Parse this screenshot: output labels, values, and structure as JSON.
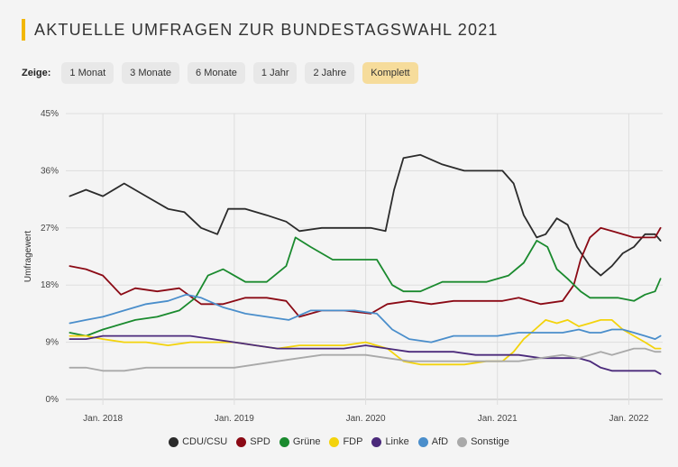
{
  "page": {
    "title": "AKTUELLE UMFRAGEN ZUR BUNDESTAGSWAHL 2021"
  },
  "filters": {
    "label": "Zeige:",
    "buttons": [
      "1 Monat",
      "3 Monate",
      "6 Monate",
      "1 Jahr",
      "2 Jahre",
      "Komplett"
    ],
    "active": "Komplett",
    "active_color": "#f6dc9b"
  },
  "chart_data": {
    "type": "line",
    "ylabel": "Umfragewert",
    "ylim": [
      0,
      45
    ],
    "yticks": [
      "0%",
      "9%",
      "18%",
      "27%",
      "36%",
      "45%"
    ],
    "xlim": [
      "2017-09-20",
      "2022-04-05"
    ],
    "xticks": [
      "Jan. 2018",
      "Jan. 2019",
      "Jan. 2020",
      "Jan. 2021",
      "Jan. 2022"
    ],
    "xtick_dates": [
      "2018-01-01",
      "2019-01-01",
      "2020-01-01",
      "2021-01-01",
      "2022-01-01"
    ],
    "grid": true,
    "legend_position": "bottom",
    "series": [
      {
        "name": "CDU/CSU",
        "color": "#2b2b2b",
        "points": [
          [
            "2017-10-01",
            32
          ],
          [
            "2017-11-15",
            33
          ],
          [
            "2018-01-01",
            32
          ],
          [
            "2018-03-01",
            34
          ],
          [
            "2018-05-01",
            32
          ],
          [
            "2018-07-01",
            30
          ],
          [
            "2018-08-15",
            29.5
          ],
          [
            "2018-10-01",
            27
          ],
          [
            "2018-11-15",
            26
          ],
          [
            "2018-12-15",
            30
          ],
          [
            "2019-02-01",
            30
          ],
          [
            "2019-04-01",
            29
          ],
          [
            "2019-05-25",
            28
          ],
          [
            "2019-07-01",
            26.5
          ],
          [
            "2019-09-01",
            27
          ],
          [
            "2019-11-01",
            27
          ],
          [
            "2020-01-15",
            27
          ],
          [
            "2020-02-25",
            26.5
          ],
          [
            "2020-03-20",
            33
          ],
          [
            "2020-04-15",
            38
          ],
          [
            "2020-06-01",
            38.5
          ],
          [
            "2020-08-01",
            37
          ],
          [
            "2020-10-01",
            36
          ],
          [
            "2020-12-01",
            36
          ],
          [
            "2021-01-15",
            36
          ],
          [
            "2021-02-15",
            34
          ],
          [
            "2021-03-15",
            29
          ],
          [
            "2021-04-20",
            25.5
          ],
          [
            "2021-05-15",
            26
          ],
          [
            "2021-06-15",
            28.5
          ],
          [
            "2021-07-15",
            27.5
          ],
          [
            "2021-08-10",
            24
          ],
          [
            "2021-09-15",
            21
          ],
          [
            "2021-10-15",
            19.5
          ],
          [
            "2021-11-15",
            21
          ],
          [
            "2021-12-15",
            23
          ],
          [
            "2022-01-15",
            24
          ],
          [
            "2022-02-15",
            26
          ],
          [
            "2022-03-15",
            26
          ],
          [
            "2022-03-30",
            25
          ]
        ]
      },
      {
        "name": "SPD",
        "color": "#8b0a15",
        "points": [
          [
            "2017-10-01",
            21
          ],
          [
            "2017-11-15",
            20.5
          ],
          [
            "2018-01-01",
            19.5
          ],
          [
            "2018-02-20",
            16.5
          ],
          [
            "2018-04-01",
            17.5
          ],
          [
            "2018-06-01",
            17
          ],
          [
            "2018-08-01",
            17.5
          ],
          [
            "2018-10-01",
            15
          ],
          [
            "2018-12-01",
            15
          ],
          [
            "2019-02-01",
            16
          ],
          [
            "2019-04-01",
            16
          ],
          [
            "2019-05-25",
            15.5
          ],
          [
            "2019-07-01",
            13
          ],
          [
            "2019-09-01",
            14
          ],
          [
            "2019-11-01",
            14
          ],
          [
            "2020-01-15",
            13.5
          ],
          [
            "2020-03-01",
            15
          ],
          [
            "2020-05-01",
            15.5
          ],
          [
            "2020-07-01",
            15
          ],
          [
            "2020-09-01",
            15.5
          ],
          [
            "2020-11-01",
            15.5
          ],
          [
            "2021-01-15",
            15.5
          ],
          [
            "2021-03-01",
            16
          ],
          [
            "2021-05-01",
            15
          ],
          [
            "2021-07-01",
            15.5
          ],
          [
            "2021-08-01",
            18
          ],
          [
            "2021-08-20",
            22
          ],
          [
            "2021-09-15",
            25.5
          ],
          [
            "2021-10-15",
            27
          ],
          [
            "2021-11-15",
            26.5
          ],
          [
            "2021-12-15",
            26
          ],
          [
            "2022-01-15",
            25.5
          ],
          [
            "2022-02-15",
            25.5
          ],
          [
            "2022-03-15",
            25.5
          ],
          [
            "2022-03-30",
            27
          ]
        ]
      },
      {
        "name": "Grüne",
        "color": "#1a8a2e",
        "points": [
          [
            "2017-10-01",
            10.5
          ],
          [
            "2017-11-15",
            10
          ],
          [
            "2018-01-01",
            11
          ],
          [
            "2018-04-01",
            12.5
          ],
          [
            "2018-06-01",
            13
          ],
          [
            "2018-08-01",
            14
          ],
          [
            "2018-09-15",
            16
          ],
          [
            "2018-10-20",
            19.5
          ],
          [
            "2018-12-01",
            20.5
          ],
          [
            "2019-02-01",
            18.5
          ],
          [
            "2019-04-01",
            18.5
          ],
          [
            "2019-05-25",
            21
          ],
          [
            "2019-06-20",
            25.5
          ],
          [
            "2019-08-01",
            24
          ],
          [
            "2019-10-01",
            22
          ],
          [
            "2019-12-01",
            22
          ],
          [
            "2020-02-01",
            22
          ],
          [
            "2020-03-15",
            18
          ],
          [
            "2020-04-15",
            17
          ],
          [
            "2020-06-01",
            17
          ],
          [
            "2020-08-01",
            18.5
          ],
          [
            "2020-10-01",
            18.5
          ],
          [
            "2020-12-01",
            18.5
          ],
          [
            "2021-02-01",
            19.5
          ],
          [
            "2021-03-15",
            21.5
          ],
          [
            "2021-04-20",
            25
          ],
          [
            "2021-05-20",
            24
          ],
          [
            "2021-06-15",
            20.5
          ],
          [
            "2021-07-15",
            19
          ],
          [
            "2021-08-20",
            17
          ],
          [
            "2021-09-15",
            16
          ],
          [
            "2021-10-15",
            16
          ],
          [
            "2021-12-01",
            16
          ],
          [
            "2022-01-15",
            15.5
          ],
          [
            "2022-02-15",
            16.5
          ],
          [
            "2022-03-15",
            17
          ],
          [
            "2022-03-30",
            19
          ]
        ]
      },
      {
        "name": "FDP",
        "color": "#f3d30c",
        "points": [
          [
            "2017-10-01",
            10
          ],
          [
            "2017-11-15",
            10
          ],
          [
            "2018-01-01",
            9.5
          ],
          [
            "2018-03-01",
            9
          ],
          [
            "2018-05-01",
            9
          ],
          [
            "2018-07-01",
            8.5
          ],
          [
            "2018-09-01",
            9
          ],
          [
            "2018-11-01",
            9
          ],
          [
            "2019-01-01",
            9
          ],
          [
            "2019-03-01",
            8.5
          ],
          [
            "2019-05-01",
            8
          ],
          [
            "2019-07-01",
            8.5
          ],
          [
            "2019-09-01",
            8.5
          ],
          [
            "2019-11-01",
            8.5
          ],
          [
            "2020-01-01",
            9
          ],
          [
            "2020-03-01",
            8
          ],
          [
            "2020-04-15",
            6
          ],
          [
            "2020-06-01",
            5.5
          ],
          [
            "2020-08-01",
            5.5
          ],
          [
            "2020-10-01",
            5.5
          ],
          [
            "2020-12-01",
            6
          ],
          [
            "2021-01-15",
            6
          ],
          [
            "2021-02-15",
            7.5
          ],
          [
            "2021-03-15",
            9.5
          ],
          [
            "2021-04-15",
            11
          ],
          [
            "2021-05-15",
            12.5
          ],
          [
            "2021-06-15",
            12
          ],
          [
            "2021-07-15",
            12.5
          ],
          [
            "2021-08-15",
            11.5
          ],
          [
            "2021-09-15",
            12
          ],
          [
            "2021-10-15",
            12.5
          ],
          [
            "2021-11-15",
            12.5
          ],
          [
            "2021-12-15",
            11
          ],
          [
            "2022-01-15",
            10
          ],
          [
            "2022-02-15",
            9
          ],
          [
            "2022-03-15",
            8
          ],
          [
            "2022-03-30",
            8
          ]
        ]
      },
      {
        "name": "Linke",
        "color": "#4b2a7b",
        "points": [
          [
            "2017-10-01",
            9.5
          ],
          [
            "2017-11-15",
            9.5
          ],
          [
            "2018-01-01",
            10
          ],
          [
            "2018-03-01",
            10
          ],
          [
            "2018-05-01",
            10
          ],
          [
            "2018-07-01",
            10
          ],
          [
            "2018-09-01",
            10
          ],
          [
            "2018-11-01",
            9.5
          ],
          [
            "2019-01-01",
            9
          ],
          [
            "2019-03-01",
            8.5
          ],
          [
            "2019-05-01",
            8
          ],
          [
            "2019-07-01",
            8
          ],
          [
            "2019-09-01",
            8
          ],
          [
            "2019-11-01",
            8
          ],
          [
            "2020-01-01",
            8.5
          ],
          [
            "2020-03-01",
            8
          ],
          [
            "2020-05-01",
            7.5
          ],
          [
            "2020-07-01",
            7.5
          ],
          [
            "2020-09-01",
            7.5
          ],
          [
            "2020-11-01",
            7
          ],
          [
            "2021-01-01",
            7
          ],
          [
            "2021-03-01",
            7
          ],
          [
            "2021-05-01",
            6.5
          ],
          [
            "2021-07-01",
            6.5
          ],
          [
            "2021-08-15",
            6.5
          ],
          [
            "2021-09-15",
            6
          ],
          [
            "2021-10-15",
            5
          ],
          [
            "2021-11-15",
            4.5
          ],
          [
            "2021-12-15",
            4.5
          ],
          [
            "2022-01-15",
            4.5
          ],
          [
            "2022-02-15",
            4.5
          ],
          [
            "2022-03-15",
            4.5
          ],
          [
            "2022-03-30",
            4
          ]
        ]
      },
      {
        "name": "AfD",
        "color": "#4a8ecb",
        "points": [
          [
            "2017-10-01",
            12
          ],
          [
            "2017-11-15",
            12.5
          ],
          [
            "2018-01-01",
            13
          ],
          [
            "2018-03-01",
            14
          ],
          [
            "2018-05-01",
            15
          ],
          [
            "2018-07-01",
            15.5
          ],
          [
            "2018-08-20",
            16.5
          ],
          [
            "2018-10-01",
            16
          ],
          [
            "2018-12-01",
            14.5
          ],
          [
            "2019-02-01",
            13.5
          ],
          [
            "2019-04-01",
            13
          ],
          [
            "2019-06-01",
            12.5
          ],
          [
            "2019-08-01",
            14
          ],
          [
            "2019-10-01",
            14
          ],
          [
            "2019-12-01",
            14
          ],
          [
            "2020-02-01",
            13.5
          ],
          [
            "2020-03-15",
            11
          ],
          [
            "2020-05-01",
            9.5
          ],
          [
            "2020-07-01",
            9
          ],
          [
            "2020-09-01",
            10
          ],
          [
            "2020-11-01",
            10
          ],
          [
            "2021-01-01",
            10
          ],
          [
            "2021-03-01",
            10.5
          ],
          [
            "2021-05-01",
            10.5
          ],
          [
            "2021-07-01",
            10.5
          ],
          [
            "2021-08-15",
            11
          ],
          [
            "2021-09-15",
            10.5
          ],
          [
            "2021-10-15",
            10.5
          ],
          [
            "2021-11-15",
            11
          ],
          [
            "2021-12-15",
            11
          ],
          [
            "2022-01-15",
            10.5
          ],
          [
            "2022-02-15",
            10
          ],
          [
            "2022-03-15",
            9.5
          ],
          [
            "2022-03-30",
            10
          ]
        ]
      },
      {
        "name": "Sonstige",
        "color": "#a9a9a9",
        "points": [
          [
            "2017-10-01",
            5
          ],
          [
            "2017-11-15",
            5
          ],
          [
            "2018-01-01",
            4.5
          ],
          [
            "2018-03-01",
            4.5
          ],
          [
            "2018-05-01",
            5
          ],
          [
            "2018-07-01",
            5
          ],
          [
            "2018-09-01",
            5
          ],
          [
            "2018-11-01",
            5
          ],
          [
            "2019-01-01",
            5
          ],
          [
            "2019-03-01",
            5.5
          ],
          [
            "2019-05-01",
            6
          ],
          [
            "2019-07-01",
            6.5
          ],
          [
            "2019-09-01",
            7
          ],
          [
            "2019-11-01",
            7
          ],
          [
            "2020-01-01",
            7
          ],
          [
            "2020-03-01",
            6.5
          ],
          [
            "2020-05-01",
            6
          ],
          [
            "2020-07-01",
            6
          ],
          [
            "2020-09-01",
            6
          ],
          [
            "2020-11-01",
            6
          ],
          [
            "2021-01-01",
            6
          ],
          [
            "2021-03-01",
            6
          ],
          [
            "2021-05-01",
            6.5
          ],
          [
            "2021-07-01",
            7
          ],
          [
            "2021-08-15",
            6.5
          ],
          [
            "2021-09-15",
            7
          ],
          [
            "2021-10-15",
            7.5
          ],
          [
            "2021-11-15",
            7
          ],
          [
            "2021-12-15",
            7.5
          ],
          [
            "2022-01-15",
            8
          ],
          [
            "2022-02-15",
            8
          ],
          [
            "2022-03-15",
            7.5
          ],
          [
            "2022-03-30",
            7.5
          ]
        ]
      }
    ]
  }
}
